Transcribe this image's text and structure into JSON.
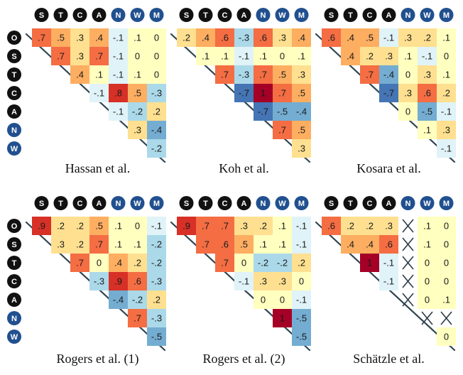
{
  "palette": {
    "dark_badge": "#111111",
    "blue_badge": "#21508f",
    "cross_color": "#2b3a45",
    "diag_line": "#2f4550",
    "scale": [
      "#4575b4",
      "#74add1",
      "#abd9e9",
      "#e0f3f8",
      "#ffffbf",
      "#fee090",
      "#fdae61",
      "#f46d43",
      "#d73027",
      "#a50026"
    ]
  },
  "headers": {
    "columns": [
      "S",
      "T",
      "C",
      "A",
      "N",
      "W",
      "M"
    ],
    "rows": [
      "O",
      "S",
      "T",
      "C",
      "A",
      "N",
      "W"
    ],
    "blue": [
      "N",
      "W",
      "M"
    ]
  },
  "chart_data": [
    {
      "type": "heatmap",
      "title": "Hassan et al.",
      "matrix": [
        [
          ".7",
          ".5",
          ".3",
          ".4",
          "-.1",
          ".1",
          "0"
        ],
        [
          null,
          ".7",
          ".3",
          ".7",
          "-.1",
          "0",
          "0"
        ],
        [
          null,
          null,
          ".4",
          ".1",
          "-.1",
          ".1",
          "0"
        ],
        [
          null,
          null,
          null,
          "-.1",
          ".8",
          ".5",
          "-.3"
        ],
        [
          null,
          null,
          null,
          null,
          "-.1",
          "-.2",
          ".2"
        ],
        [
          null,
          null,
          null,
          null,
          null,
          ".3",
          "-.4"
        ],
        [
          null,
          null,
          null,
          null,
          null,
          null,
          "-.2"
        ]
      ]
    },
    {
      "type": "heatmap",
      "title": "Koh et al.",
      "matrix": [
        [
          ".2",
          ".4",
          ".6",
          "-.3",
          ".6",
          ".3",
          ".4"
        ],
        [
          null,
          ".1",
          ".1",
          "-.1",
          ".1",
          "0",
          ".1"
        ],
        [
          null,
          null,
          ".7",
          "-.3",
          ".7",
          ".5",
          ".3"
        ],
        [
          null,
          null,
          null,
          "-.7",
          "1",
          ".7",
          ".5"
        ],
        [
          null,
          null,
          null,
          null,
          "-.7",
          "-.5",
          "-.4"
        ],
        [
          null,
          null,
          null,
          null,
          null,
          ".7",
          ".5"
        ],
        [
          null,
          null,
          null,
          null,
          null,
          null,
          ".3"
        ]
      ]
    },
    {
      "type": "heatmap",
      "title": "Kosara et al.",
      "matrix": [
        [
          ".6",
          ".4",
          ".5",
          "-.1",
          ".3",
          ".2",
          ".1"
        ],
        [
          null,
          ".4",
          ".2",
          ".3",
          ".1",
          "-.1",
          "0"
        ],
        [
          null,
          null,
          ".7",
          "-.4",
          "0",
          ".3",
          ".1"
        ],
        [
          null,
          null,
          null,
          "-.7",
          ".3",
          ".6",
          ".2"
        ],
        [
          null,
          null,
          null,
          null,
          "0",
          "-.5",
          "-.1"
        ],
        [
          null,
          null,
          null,
          null,
          null,
          ".1",
          ".3"
        ],
        [
          null,
          null,
          null,
          null,
          null,
          null,
          "-.1"
        ]
      ]
    },
    {
      "type": "heatmap",
      "title": "Rogers et al. (1)",
      "matrix": [
        [
          ".9",
          ".2",
          ".2",
          ".5",
          ".1",
          "0",
          "-.1"
        ],
        [
          null,
          ".3",
          ".2",
          ".7",
          ".1",
          ".1",
          "-.2"
        ],
        [
          null,
          null,
          ".7",
          "0",
          ".4",
          ".2",
          "-.2"
        ],
        [
          null,
          null,
          null,
          "-.3",
          ".9",
          ".6",
          "-.3"
        ],
        [
          null,
          null,
          null,
          null,
          "-.4",
          "-.2",
          ".2"
        ],
        [
          null,
          null,
          null,
          null,
          null,
          ".7",
          "-.3"
        ],
        [
          null,
          null,
          null,
          null,
          null,
          null,
          "-.5"
        ]
      ]
    },
    {
      "type": "heatmap",
      "title": "Rogers et al. (2)",
      "matrix": [
        [
          ".9",
          ".7",
          ".7",
          ".3",
          ".2",
          ".1",
          "-.1"
        ],
        [
          null,
          ".7",
          ".6",
          ".5",
          ".1",
          ".1",
          "-.1"
        ],
        [
          null,
          null,
          ".7",
          "0",
          "-.2",
          "-.2",
          ".2"
        ],
        [
          null,
          null,
          null,
          "-.1",
          ".3",
          ".3",
          "0"
        ],
        [
          null,
          null,
          null,
          null,
          "0",
          "0",
          "-.1"
        ],
        [
          null,
          null,
          null,
          null,
          null,
          "1",
          "-.5"
        ],
        [
          null,
          null,
          null,
          null,
          null,
          null,
          "-.5"
        ]
      ]
    },
    {
      "type": "heatmap",
      "title": "Schätzle et al.",
      "matrix": [
        [
          ".6",
          ".2",
          ".2",
          ".3",
          "x",
          ".1",
          "0"
        ],
        [
          null,
          ".4",
          ".4",
          ".6",
          "x",
          ".1",
          "0"
        ],
        [
          null,
          null,
          "1",
          "-.1",
          "x",
          "0",
          "0"
        ],
        [
          null,
          null,
          null,
          "-.1",
          "x",
          "0",
          "0"
        ],
        [
          null,
          null,
          null,
          null,
          "x",
          "0",
          ".1"
        ],
        [
          null,
          null,
          null,
          null,
          null,
          "x",
          "x"
        ],
        [
          null,
          null,
          null,
          null,
          null,
          null,
          "0"
        ]
      ]
    }
  ]
}
